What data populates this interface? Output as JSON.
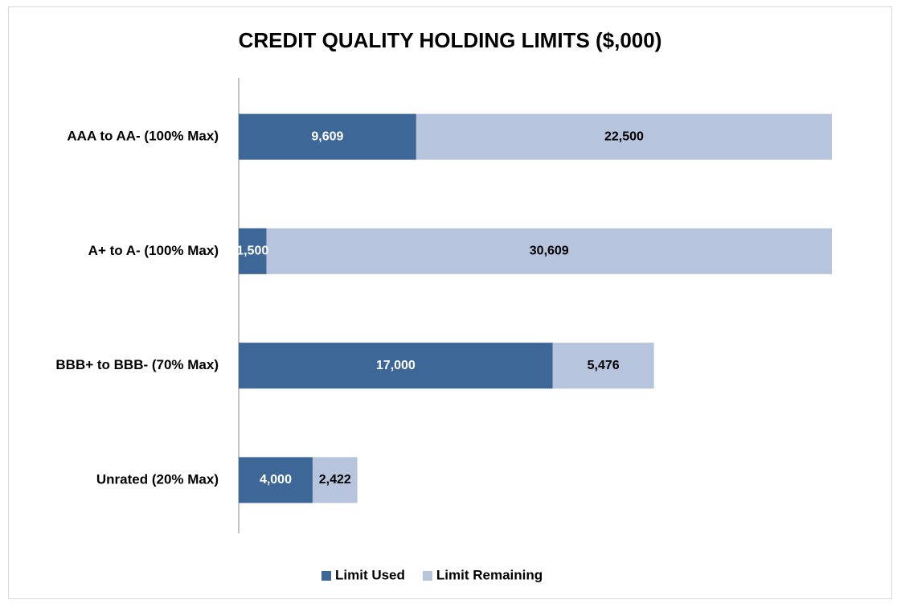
{
  "chart_data": {
    "type": "bar",
    "orientation": "horizontal",
    "stacked": true,
    "title": "CREDIT QUALITY HOLDING LIMITS ($,000)",
    "categories": [
      "AAA to AA-  (100% Max)",
      "A+ to A-  (100% Max)",
      "BBB+ to BBB- (70% Max)",
      "Unrated (20% Max)"
    ],
    "series": [
      {
        "name": "Limit Used",
        "color": "#3d6796",
        "label_color": "#ffffff",
        "values": [
          9609,
          1500,
          17000,
          4000
        ],
        "value_labels": [
          "9,609",
          "1,500",
          "17,000",
          "4,000"
        ]
      },
      {
        "name": "Limit Remaining",
        "color": "#b6c4de",
        "label_color": "#000000",
        "values": [
          22500,
          30609,
          5476,
          2422
        ],
        "value_labels": [
          "22,500",
          "30,609",
          "5,476",
          "2,422"
        ]
      }
    ],
    "legend": "bottom"
  }
}
